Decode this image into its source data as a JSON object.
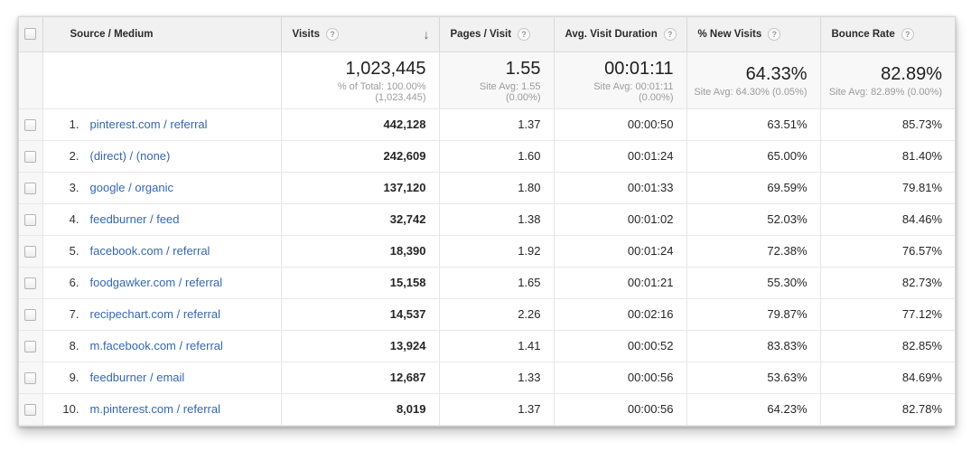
{
  "table": {
    "columns": [
      {
        "label": "Source / Medium",
        "help": false
      },
      {
        "label": "Visits",
        "help": true,
        "sorted": "desc"
      },
      {
        "label": "Pages / Visit",
        "help": true
      },
      {
        "label": "Avg. Visit Duration",
        "help": true
      },
      {
        "label": "% New Visits",
        "help": true
      },
      {
        "label": "Bounce Rate",
        "help": true
      }
    ],
    "icons": {
      "help_glyph": "?",
      "sort_desc_glyph": "↓"
    },
    "summary": {
      "visits": "1,023,445",
      "visits_sub": "% of Total: 100.00% (1,023,445)",
      "pages_per_visit": "1.55",
      "pages_per_visit_sub": "Site Avg: 1.55 (0.00%)",
      "avg_visit_duration": "00:01:11",
      "avg_visit_duration_sub": "Site Avg: 00:01:11 (0.00%)",
      "pct_new_visits": "64.33%",
      "pct_new_visits_sub": "Site Avg: 64.30% (0.05%)",
      "bounce_rate": "82.89%",
      "bounce_rate_sub": "Site Avg: 82.89% (0.00%)"
    },
    "rows": [
      {
        "rank": "1.",
        "source": "pinterest.com / referral",
        "visits": "442,128",
        "pages": "1.37",
        "duration": "00:00:50",
        "new_visits": "63.51%",
        "bounce": "85.73%"
      },
      {
        "rank": "2.",
        "source": "(direct) / (none)",
        "visits": "242,609",
        "pages": "1.60",
        "duration": "00:01:24",
        "new_visits": "65.00%",
        "bounce": "81.40%"
      },
      {
        "rank": "3.",
        "source": "google / organic",
        "visits": "137,120",
        "pages": "1.80",
        "duration": "00:01:33",
        "new_visits": "69.59%",
        "bounce": "79.81%"
      },
      {
        "rank": "4.",
        "source": "feedburner / feed",
        "visits": "32,742",
        "pages": "1.38",
        "duration": "00:01:02",
        "new_visits": "52.03%",
        "bounce": "84.46%"
      },
      {
        "rank": "5.",
        "source": "facebook.com / referral",
        "visits": "18,390",
        "pages": "1.92",
        "duration": "00:01:24",
        "new_visits": "72.38%",
        "bounce": "76.57%"
      },
      {
        "rank": "6.",
        "source": "foodgawker.com / referral",
        "visits": "15,158",
        "pages": "1.65",
        "duration": "00:01:21",
        "new_visits": "55.30%",
        "bounce": "82.73%"
      },
      {
        "rank": "7.",
        "source": "recipechart.com / referral",
        "visits": "14,537",
        "pages": "2.26",
        "duration": "00:02:16",
        "new_visits": "79.87%",
        "bounce": "77.12%"
      },
      {
        "rank": "8.",
        "source": "m.facebook.com / referral",
        "visits": "13,924",
        "pages": "1.41",
        "duration": "00:00:52",
        "new_visits": "83.83%",
        "bounce": "82.85%"
      },
      {
        "rank": "9.",
        "source": "feedburner / email",
        "visits": "12,687",
        "pages": "1.33",
        "duration": "00:00:56",
        "new_visits": "53.63%",
        "bounce": "84.69%"
      },
      {
        "rank": "10.",
        "source": "m.pinterest.com / referral",
        "visits": "8,019",
        "pages": "1.37",
        "duration": "00:00:56",
        "new_visits": "64.23%",
        "bounce": "82.78%"
      }
    ]
  }
}
